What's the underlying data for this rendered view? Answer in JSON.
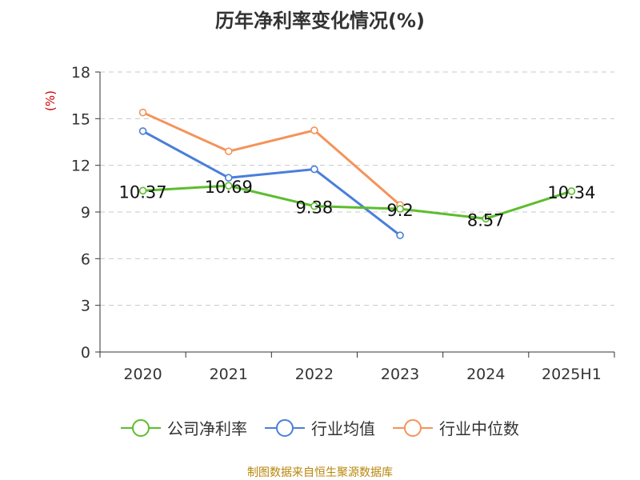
{
  "chart_data": {
    "type": "line",
    "title": "历年净利率变化情况(%)",
    "ylabel": "(%)",
    "xlabel": "",
    "categories": [
      "2020",
      "2021",
      "2022",
      "2023",
      "2024",
      "2025H1"
    ],
    "ylim": [
      0,
      18
    ],
    "yticks": [
      0,
      3,
      6,
      9,
      12,
      15,
      18
    ],
    "grid": true,
    "legend_position": "bottom",
    "series": [
      {
        "name": "公司净利率",
        "color": "#5cbd2e",
        "values": [
          10.37,
          10.69,
          9.38,
          9.2,
          8.57,
          10.34
        ],
        "labels": [
          "10.37",
          "10.69",
          "9.38",
          "9.2",
          "8.57",
          "10.34"
        ]
      },
      {
        "name": "行业均值",
        "color": "#4a7fd9",
        "values": [
          14.2,
          11.2,
          11.75,
          7.5,
          null,
          null
        ]
      },
      {
        "name": "行业中位数",
        "color": "#f4935a",
        "values": [
          15.4,
          12.9,
          14.25,
          9.45,
          null,
          null
        ]
      }
    ]
  },
  "source": "制图数据来自恒生聚源数据库"
}
